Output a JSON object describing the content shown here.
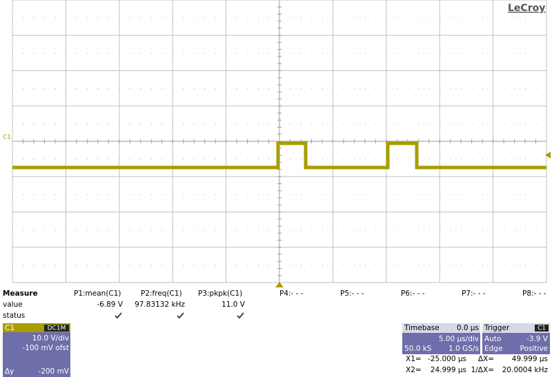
{
  "logo": "LeCroy",
  "channel_marker": "C1",
  "measure": {
    "label": "Measure",
    "row_labels": [
      "value",
      "status"
    ],
    "params": [
      {
        "name": "P1:mean(C1)",
        "value": "-6.89 V"
      },
      {
        "name": "P2:freq(C1)",
        "value": "97.83132 kHz"
      },
      {
        "name": "P3:pkpk(C1)",
        "value": "11.0 V"
      },
      {
        "name": "P4:- - -"
      },
      {
        "name": "P5:- - -"
      },
      {
        "name": "P6:- - -"
      },
      {
        "name": "P7:- - -"
      },
      {
        "name": "P8:- - -"
      }
    ]
  },
  "channel": {
    "name": "C1",
    "coupling": "DC1M",
    "vdiv": "10.0 V/div",
    "offset": "-100 mV ofst",
    "delta_y_label": "Δy",
    "delta_y": "-200 mV"
  },
  "timebase": {
    "label": "Timebase",
    "delay": "0.0 µs",
    "tdiv": "5.00 µs/div",
    "samples": "50.0 kS",
    "rate": "1.0 GS/s"
  },
  "trigger": {
    "label": "Trigger",
    "source": "C1",
    "mode": "Auto",
    "level": "-3.9 V",
    "type": "Edge",
    "slope": "Positive"
  },
  "cursors": [
    {
      "label": "X1=",
      "value": "-25.000 µs",
      "delta_label": "ΔX=",
      "delta_value": "49.999 µs"
    },
    {
      "label": "X2=",
      "value": "24.999 µs",
      "delta_label": "1/ΔX=",
      "delta_value": "20.0004 kHz"
    }
  ]
}
